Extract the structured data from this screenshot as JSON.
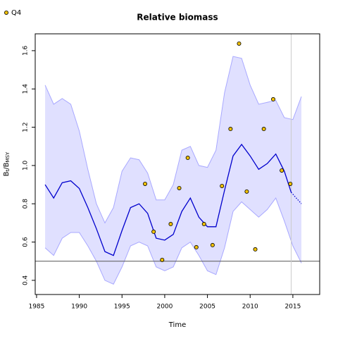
{
  "chart_data": {
    "type": "line",
    "title": "Relative biomass",
    "xlabel": "Time",
    "ylabel_parts": [
      "B",
      "t",
      "/B",
      "MSY"
    ],
    "xlim": [
      1984.84,
      2018.14
    ],
    "ylim": [
      0.326,
      1.688
    ],
    "xticks": [
      1985,
      1990,
      1995,
      2000,
      2005,
      2010,
      2015
    ],
    "yticks": [
      0.4,
      0.6,
      0.8,
      {
        "value": 1,
        "label": "1.0"
      },
      1.2,
      1.4,
      1.6
    ],
    "band": {
      "color": "#e0e0ff",
      "edge_color": "#a8a8ff",
      "x": [
        1986,
        1987,
        1988,
        1989,
        1990,
        1991,
        1992,
        1993,
        1994,
        1995,
        1996,
        1997,
        1998,
        1999,
        2000,
        2001,
        2002,
        2003,
        2004,
        2005,
        2006,
        2007,
        2008,
        2009,
        2010,
        2011,
        2012,
        2013,
        2014,
        2015,
        2016
      ],
      "upper": [
        1.42,
        1.32,
        1.35,
        1.32,
        1.18,
        0.98,
        0.8,
        0.7,
        0.78,
        0.97,
        1.04,
        1.03,
        0.96,
        0.82,
        0.82,
        0.9,
        1.08,
        1.1,
        1.0,
        0.99,
        1.08,
        1.38,
        1.57,
        1.56,
        1.42,
        1.32,
        1.33,
        1.34,
        1.25,
        1.24,
        1.36
      ],
      "lower": [
        0.57,
        0.53,
        0.62,
        0.65,
        0.65,
        0.58,
        0.5,
        0.4,
        0.38,
        0.47,
        0.58,
        0.6,
        0.58,
        0.47,
        0.45,
        0.47,
        0.57,
        0.6,
        0.53,
        0.45,
        0.43,
        0.57,
        0.76,
        0.81,
        0.77,
        0.73,
        0.77,
        0.83,
        0.71,
        0.58,
        0.49
      ]
    },
    "estimate": {
      "color": "#0000cd",
      "x": [
        1986,
        1987,
        1988,
        1989,
        1990,
        1991,
        1992,
        1993,
        1994,
        1995,
        1996,
        1997,
        1998,
        1999,
        2000,
        2001,
        2002,
        2003,
        2004,
        2005,
        2006,
        2007,
        2008,
        2009,
        2010,
        2011,
        2012,
        2013,
        2014,
        2014.8
      ],
      "values": [
        0.9,
        0.83,
        0.91,
        0.92,
        0.88,
        0.78,
        0.67,
        0.55,
        0.53,
        0.66,
        0.78,
        0.8,
        0.75,
        0.62,
        0.61,
        0.64,
        0.76,
        0.83,
        0.73,
        0.68,
        0.68,
        0.87,
        1.05,
        1.11,
        1.05,
        0.98,
        1.01,
        1.06,
        0.97,
        0.86
      ]
    },
    "forecast": {
      "color": "#0000cd",
      "x": [
        2014.8,
        2016
      ],
      "values": [
        0.86,
        0.8
      ]
    },
    "series": [
      {
        "name": "Q4",
        "color": "#f0c000",
        "x": [
          1997.7,
          1998.7,
          1999.7,
          2000.7,
          2001.7,
          2002.7,
          2003.7,
          2004.6,
          2005.6,
          2006.7,
          2007.7,
          2008.7,
          2009.6,
          2010.6,
          2011.6,
          2012.7,
          2013.7,
          2014.7
        ],
        "values": [
          0.904,
          0.654,
          0.507,
          0.694,
          0.882,
          1.04,
          0.573,
          0.694,
          0.584,
          0.893,
          1.191,
          1.637,
          0.864,
          0.562,
          1.191,
          1.346,
          0.974,
          0.904
        ]
      }
    ],
    "hlines": [
      0.5
    ],
    "vlines": [
      2014.8
    ]
  }
}
